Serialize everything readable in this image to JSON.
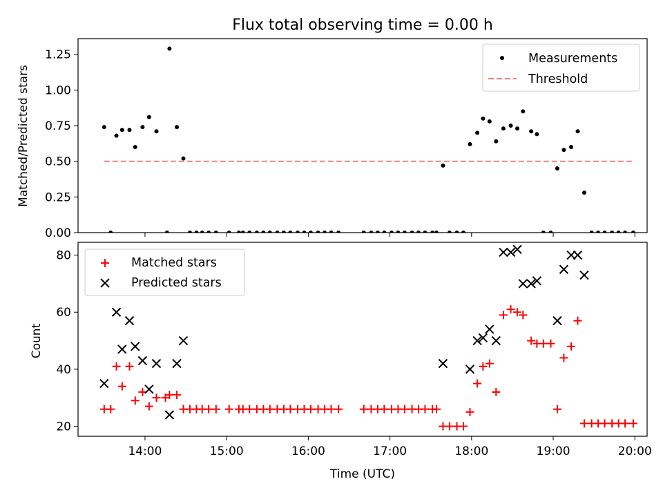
{
  "chart_data": [
    {
      "type": "scatter",
      "title": "Flux total observing time = 0.00 h",
      "xlabel": "",
      "ylabel": "Matched/Predicted stars",
      "xlim": [
        13.18,
        20.15
      ],
      "ylim": [
        0,
        1.36
      ],
      "yticks": [
        {
          "value": 0.0,
          "label": "0.00"
        },
        {
          "value": 0.25,
          "label": "0.25"
        },
        {
          "value": 0.5,
          "label": "0.50"
        },
        {
          "value": 0.75,
          "label": "0.75"
        },
        {
          "value": 1.0,
          "label": "1.00"
        },
        {
          "value": 1.25,
          "label": "1.25"
        }
      ],
      "xticks": [
        14,
        15,
        16,
        17,
        18,
        19,
        20
      ],
      "legend": {
        "position": "top-right",
        "entries": [
          "Measurements",
          "Threshold"
        ]
      },
      "colors": {
        "measurements": "#000000",
        "threshold": "#f08080"
      },
      "threshold": {
        "name": "Threshold",
        "x": [
          13.5,
          20.0
        ],
        "y": 0.5
      },
      "series": [
        {
          "name": "Measurements",
          "points": [
            [
              13.5,
              0.74
            ],
            [
              13.58,
              0.0
            ],
            [
              13.65,
              0.68
            ],
            [
              13.72,
              0.72
            ],
            [
              13.81,
              0.72
            ],
            [
              13.88,
              0.6
            ],
            [
              13.97,
              0.74
            ],
            [
              14.05,
              0.81
            ],
            [
              14.14,
              0.71
            ],
            [
              14.27,
              0.0
            ],
            [
              14.3,
              1.29
            ],
            [
              14.39,
              0.74
            ],
            [
              14.47,
              0.52
            ],
            [
              14.55,
              0.0
            ],
            [
              14.63,
              0.0
            ],
            [
              14.7,
              0.0
            ],
            [
              14.78,
              0.0
            ],
            [
              14.87,
              0.0
            ],
            [
              15.03,
              0.0
            ],
            [
              15.15,
              0.0
            ],
            [
              15.2,
              0.0
            ],
            [
              15.28,
              0.0
            ],
            [
              15.37,
              0.0
            ],
            [
              15.45,
              0.0
            ],
            [
              15.53,
              0.0
            ],
            [
              15.62,
              0.0
            ],
            [
              15.7,
              0.0
            ],
            [
              15.78,
              0.0
            ],
            [
              15.87,
              0.0
            ],
            [
              15.95,
              0.0
            ],
            [
              16.03,
              0.0
            ],
            [
              16.12,
              0.0
            ],
            [
              16.2,
              0.0
            ],
            [
              16.28,
              0.0
            ],
            [
              16.37,
              0.0
            ],
            [
              16.68,
              0.0
            ],
            [
              16.77,
              0.0
            ],
            [
              16.85,
              0.0
            ],
            [
              16.93,
              0.0
            ],
            [
              17.02,
              0.0
            ],
            [
              17.1,
              0.0
            ],
            [
              17.18,
              0.0
            ],
            [
              17.27,
              0.0
            ],
            [
              17.35,
              0.0
            ],
            [
              17.43,
              0.0
            ],
            [
              17.52,
              0.0
            ],
            [
              17.57,
              0.0
            ],
            [
              17.65,
              0.47
            ],
            [
              17.73,
              0.0
            ],
            [
              17.82,
              0.0
            ],
            [
              17.9,
              0.0
            ],
            [
              17.98,
              0.62
            ],
            [
              18.07,
              0.7
            ],
            [
              18.14,
              0.8
            ],
            [
              18.22,
              0.78
            ],
            [
              18.3,
              0.64
            ],
            [
              18.39,
              0.73
            ],
            [
              18.48,
              0.75
            ],
            [
              18.56,
              0.73
            ],
            [
              18.63,
              0.85
            ],
            [
              18.73,
              0.71
            ],
            [
              18.8,
              0.69
            ],
            [
              18.88,
              0.0
            ],
            [
              18.97,
              0.0
            ],
            [
              19.05,
              0.45
            ],
            [
              19.13,
              0.58
            ],
            [
              19.22,
              0.6
            ],
            [
              19.3,
              0.71
            ],
            [
              19.38,
              0.28
            ],
            [
              19.47,
              0.0
            ],
            [
              19.55,
              0.0
            ],
            [
              19.63,
              0.0
            ],
            [
              19.72,
              0.0
            ],
            [
              19.8,
              0.0
            ],
            [
              19.88,
              0.0
            ],
            [
              19.98,
              0.0
            ]
          ]
        }
      ]
    },
    {
      "type": "scatter",
      "title": "",
      "xlabel": "Time (UTC)",
      "ylabel": "Count",
      "xlim": [
        13.18,
        20.15
      ],
      "ylim": [
        16.5,
        84.5
      ],
      "yticks": [
        {
          "value": 20,
          "label": "20"
        },
        {
          "value": 40,
          "label": "40"
        },
        {
          "value": 60,
          "label": "60"
        },
        {
          "value": 80,
          "label": "80"
        }
      ],
      "xticks": [
        {
          "value": 14,
          "label": "14:00"
        },
        {
          "value": 15,
          "label": "15:00"
        },
        {
          "value": 16,
          "label": "16:00"
        },
        {
          "value": 17,
          "label": "17:00"
        },
        {
          "value": 18,
          "label": "18:00"
        },
        {
          "value": 19,
          "label": "19:00"
        },
        {
          "value": 20,
          "label": "20:00"
        }
      ],
      "legend": {
        "position": "top-left",
        "entries": [
          "Matched stars",
          "Predicted stars"
        ]
      },
      "colors": {
        "matched": "#ff0000",
        "predicted": "#000000"
      },
      "series": [
        {
          "name": "Matched stars",
          "points": [
            [
              13.5,
              26
            ],
            [
              13.58,
              26
            ],
            [
              13.65,
              41
            ],
            [
              13.72,
              34
            ],
            [
              13.81,
              41
            ],
            [
              13.88,
              29
            ],
            [
              13.97,
              32
            ],
            [
              14.05,
              27
            ],
            [
              14.14,
              30
            ],
            [
              14.25,
              30
            ],
            [
              14.3,
              31
            ],
            [
              14.39,
              31
            ],
            [
              14.47,
              26
            ],
            [
              14.55,
              26
            ],
            [
              14.63,
              26
            ],
            [
              14.7,
              26
            ],
            [
              14.78,
              26
            ],
            [
              14.87,
              26
            ],
            [
              15.03,
              26
            ],
            [
              15.15,
              26
            ],
            [
              15.2,
              26
            ],
            [
              15.28,
              26
            ],
            [
              15.37,
              26
            ],
            [
              15.45,
              26
            ],
            [
              15.53,
              26
            ],
            [
              15.62,
              26
            ],
            [
              15.7,
              26
            ],
            [
              15.78,
              26
            ],
            [
              15.87,
              26
            ],
            [
              15.95,
              26
            ],
            [
              16.03,
              26
            ],
            [
              16.12,
              26
            ],
            [
              16.2,
              26
            ],
            [
              16.28,
              26
            ],
            [
              16.37,
              26
            ],
            [
              16.68,
              26
            ],
            [
              16.77,
              26
            ],
            [
              16.85,
              26
            ],
            [
              16.93,
              26
            ],
            [
              17.02,
              26
            ],
            [
              17.1,
              26
            ],
            [
              17.18,
              26
            ],
            [
              17.27,
              26
            ],
            [
              17.35,
              26
            ],
            [
              17.43,
              26
            ],
            [
              17.52,
              26
            ],
            [
              17.57,
              26
            ],
            [
              17.65,
              20
            ],
            [
              17.73,
              20
            ],
            [
              17.82,
              20
            ],
            [
              17.9,
              20
            ],
            [
              17.98,
              25
            ],
            [
              18.07,
              35
            ],
            [
              18.14,
              41
            ],
            [
              18.22,
              42
            ],
            [
              18.3,
              32
            ],
            [
              18.39,
              59
            ],
            [
              18.48,
              61
            ],
            [
              18.56,
              60
            ],
            [
              18.63,
              59
            ],
            [
              18.73,
              50
            ],
            [
              18.8,
              49
            ],
            [
              18.88,
              49
            ],
            [
              18.97,
              49
            ],
            [
              19.05,
              26
            ],
            [
              19.13,
              44
            ],
            [
              19.22,
              48
            ],
            [
              19.3,
              57
            ],
            [
              19.38,
              21
            ],
            [
              19.47,
              21
            ],
            [
              19.55,
              21
            ],
            [
              19.63,
              21
            ],
            [
              19.72,
              21
            ],
            [
              19.8,
              21
            ],
            [
              19.88,
              21
            ],
            [
              19.98,
              21
            ]
          ]
        },
        {
          "name": "Predicted stars",
          "points": [
            [
              13.5,
              35
            ],
            [
              13.65,
              60
            ],
            [
              13.72,
              47
            ],
            [
              13.81,
              57
            ],
            [
              13.88,
              48
            ],
            [
              13.97,
              43
            ],
            [
              14.05,
              33
            ],
            [
              14.14,
              42
            ],
            [
              14.3,
              24
            ],
            [
              14.39,
              42
            ],
            [
              14.47,
              50
            ],
            [
              17.65,
              42
            ],
            [
              17.98,
              40
            ],
            [
              18.07,
              50
            ],
            [
              18.14,
              51
            ],
            [
              18.22,
              54
            ],
            [
              18.3,
              50
            ],
            [
              18.39,
              81
            ],
            [
              18.48,
              81
            ],
            [
              18.56,
              82
            ],
            [
              18.63,
              70
            ],
            [
              18.73,
              70
            ],
            [
              18.8,
              71
            ],
            [
              19.05,
              57
            ],
            [
              19.13,
              75
            ],
            [
              19.22,
              80
            ],
            [
              19.3,
              80
            ],
            [
              19.38,
              73
            ]
          ]
        }
      ]
    }
  ]
}
